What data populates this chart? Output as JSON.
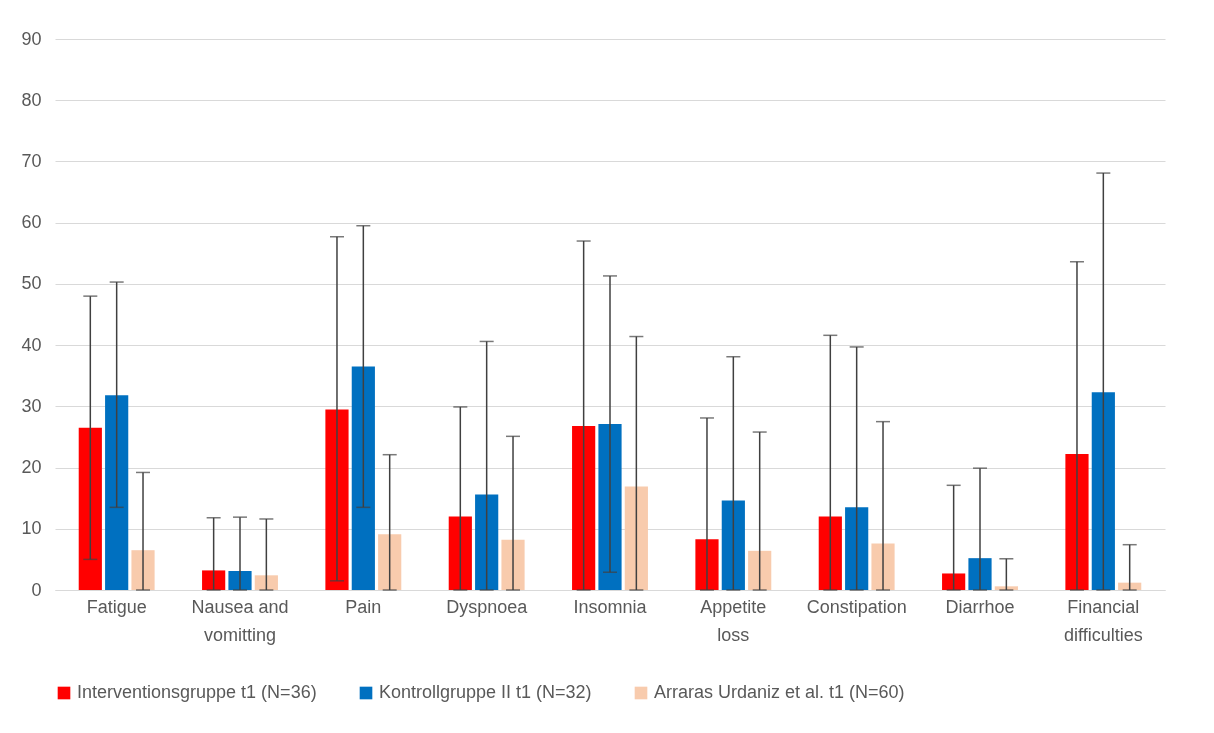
{
  "chart_data": {
    "type": "bar",
    "categories": [
      "Fatigue",
      "Nausea and vomitting",
      "Pain",
      "Dyspnoea",
      "Insomnia",
      "Appetite loss",
      "Constipation",
      "Diarrhoe",
      "Financial difficulties"
    ],
    "series": [
      {
        "name": "Interventionsgruppe t1 (N=36)",
        "color": "#ff0000",
        "values": [
          26.5,
          3.2,
          29.5,
          12,
          26.8,
          8.3,
          12,
          2.7,
          22.2
        ],
        "errors": [
          [
            5,
            48
          ],
          [
            0,
            11.8
          ],
          [
            1.5,
            57.7
          ],
          [
            0,
            29.9
          ],
          [
            0,
            57
          ],
          [
            0,
            28.1
          ],
          [
            0,
            41.6
          ],
          [
            0,
            17.1
          ],
          [
            0,
            53.6
          ]
        ]
      },
      {
        "name": "Kontrollgruppe II t1 (N=32)",
        "color": "#0070c0",
        "values": [
          31.8,
          3.1,
          36.5,
          15.6,
          27.1,
          14.6,
          13.5,
          5.2,
          32.3
        ],
        "errors": [
          [
            13.5,
            50.3
          ],
          [
            0,
            11.9
          ],
          [
            13.5,
            59.5
          ],
          [
            0,
            40.6
          ],
          [
            2.9,
            51.3
          ],
          [
            0,
            38.1
          ],
          [
            0,
            39.7
          ],
          [
            0,
            19.9
          ],
          [
            0,
            68.1
          ]
        ]
      },
      {
        "name": "Arraras Urdaniz et al. t1 (N=60)",
        "color": "#f8cbad",
        "values": [
          6.5,
          2.4,
          9.1,
          8.2,
          16.9,
          6.4,
          7.6,
          0.6,
          1.2
        ],
        "errors": [
          [
            0,
            19.2
          ],
          [
            0,
            11.6
          ],
          [
            0,
            22.1
          ],
          [
            0,
            25.1
          ],
          [
            0,
            41.4
          ],
          [
            0,
            25.8
          ],
          [
            0,
            27.5
          ],
          [
            0,
            5.1
          ],
          [
            0,
            7.4
          ]
        ]
      }
    ],
    "ylim": [
      0,
      90
    ],
    "yticks": [
      0,
      10,
      20,
      30,
      40,
      50,
      60,
      70,
      80,
      90
    ],
    "grid": "y",
    "legend": "bottom"
  }
}
